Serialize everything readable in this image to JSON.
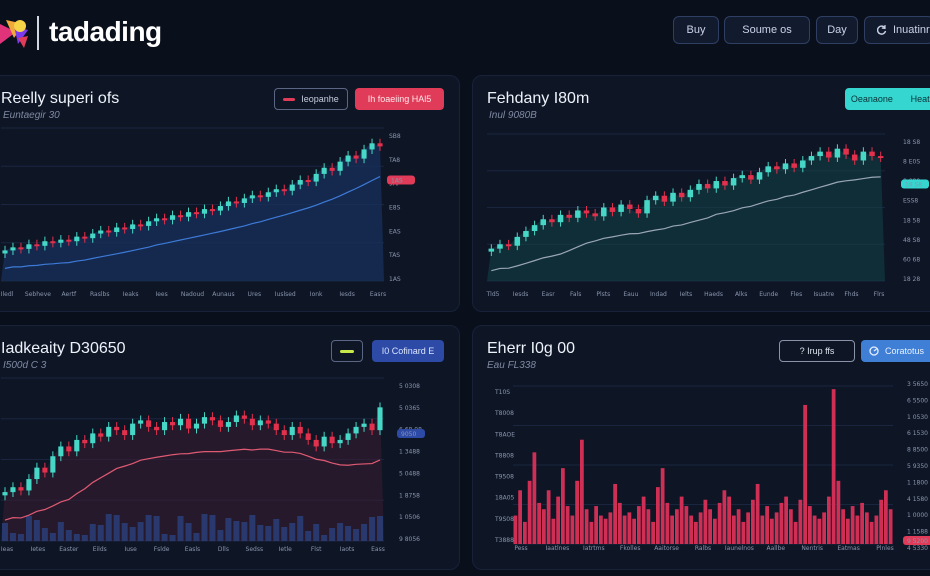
{
  "app": {
    "brand": "tadading"
  },
  "topbar": {
    "buttons": [
      {
        "label": "Buy"
      },
      {
        "label": "Soume os"
      },
      {
        "label": "Day"
      },
      {
        "label": "Inuatinr"
      }
    ]
  },
  "colors": {
    "accent_red": "#e03b58",
    "accent_teal": "#34d6cf",
    "accent_blue": "#2c5fd0",
    "panel_bg": "#0e1626"
  },
  "panels": [
    {
      "title": "Reelly superi ofs",
      "subtitle": "Euntaegir 30",
      "pill_primary": "Ieopanhe",
      "pill_secondary": "Ih foaeiing HAl5",
      "xlabels": [
        "Iledl",
        "Sebheve",
        "Aertf",
        "Raslbs",
        "Ieaks",
        "Iees",
        "Nadoud",
        "Aunaus",
        "Ures",
        "Iuslsed",
        "Ionk",
        "Iesds",
        "Easrs"
      ],
      "ylabels": [
        "SB8",
        "TA8",
        "9AP",
        "E8S",
        "EAS",
        "TAS",
        "1AS"
      ],
      "y_badge": "1AS"
    },
    {
      "title": "Fehdany I80m",
      "subtitle": "Inul 9080B",
      "pill_primary": "Oeanaone",
      "pill_secondary": "Heatry",
      "xlabels": [
        "Tld5",
        "Iesds",
        "Easr",
        "Fals",
        "Plsts",
        "Eauu",
        "Indad",
        "Ielts",
        "Haeds",
        "Alks",
        "Eunde",
        "Fles",
        "Isuatre",
        "Fhds",
        "Flrs"
      ],
      "ylabels": [
        "18 S8",
        "8 E0S",
        "8 080",
        "ESS8",
        "18 58",
        "48 S8",
        "60 68",
        "18 28"
      ],
      "y_badge": "18 S8"
    },
    {
      "title": "Iadkeaity D30650",
      "subtitle": "I500d C 3",
      "pill_primary": "—",
      "pill_secondary": "I0 Cofinard E",
      "xlabels": [
        "Ieas",
        "Ietes",
        "Easter",
        "Eilds",
        "Iuse",
        "Fslde",
        "Easls",
        "Dlls",
        "Sedss",
        "Ietle",
        "Flst",
        "Iaots",
        "Eass"
      ],
      "ylabels": [
        "5 0308",
        "5 0365",
        "6 68 08",
        "1 3488",
        "5 0488",
        "1 8758",
        "1 0506",
        "9 8056"
      ],
      "y_badge": "9050"
    },
    {
      "title": "Eherr I0g 00",
      "subtitle": "Eau FL338",
      "pill_primary": "? Irup ffs",
      "pill_secondary": "Coratotus",
      "xlabels": [
        "Pess",
        "Iaatlnes",
        "Iatrtms",
        "Fkolles",
        "Aaitorse",
        "Ralbs",
        "Iaunelnos",
        "Aallbe",
        "Nentris",
        "Eatmas",
        "Plnles"
      ],
      "ylabels": [
        "T10S",
        "T8008",
        "T8AOE",
        "T8808",
        "T9508",
        "18A05",
        "T9S08",
        "T3888"
      ],
      "right_ylabels": [
        "3 5650",
        "6 5500",
        "1 0530",
        "6 1530",
        "8 8500",
        "5 9350",
        "1 1800",
        "4 1580",
        "1 0000",
        "1 1588",
        "4 5330"
      ],
      "y_badge": "9 5200"
    }
  ],
  "chart_data": [
    {
      "type": "candlestick",
      "title": "Reelly superi ofs",
      "trend": "up",
      "series": [
        {
          "values": [
            20,
            22,
            21,
            24,
            23,
            26,
            25,
            27,
            26,
            29,
            28,
            31,
            33,
            32,
            35,
            34,
            37,
            36,
            39,
            41,
            40,
            43,
            42,
            45,
            44,
            47,
            46,
            49,
            52,
            51,
            54,
            56,
            55,
            58,
            60,
            59,
            63,
            66,
            65,
            70,
            74,
            72,
            78,
            82,
            80,
            86,
            90,
            88
          ]
        }
      ],
      "ylim": [
        0,
        100
      ]
    },
    {
      "type": "candlestick",
      "title": "Fehdany I80m",
      "trend": "up",
      "series": [
        {
          "values": [
            22,
            25,
            24,
            30,
            34,
            38,
            42,
            40,
            45,
            43,
            48,
            46,
            44,
            50,
            47,
            52,
            49,
            46,
            55,
            58,
            54,
            60,
            57,
            62,
            66,
            63,
            68,
            65,
            70,
            72,
            69,
            74,
            78,
            76,
            80,
            77,
            82,
            85,
            88,
            84,
            90,
            86,
            82,
            88,
            85,
            84
          ]
        }
      ],
      "ylim": [
        0,
        100
      ]
    },
    {
      "type": "candlestick",
      "title": "Iadkeaity D30650",
      "trend": "mixed",
      "series": [
        {
          "values": [
            30,
            33,
            31,
            38,
            45,
            42,
            52,
            58,
            55,
            62,
            60,
            66,
            64,
            70,
            68,
            65,
            72,
            74,
            70,
            68,
            73,
            71,
            75,
            69,
            72,
            76,
            74,
            70,
            73,
            77,
            75,
            71,
            74,
            72,
            68,
            65,
            70,
            66,
            62,
            58,
            64,
            60,
            62,
            66,
            70,
            72,
            68,
            82
          ]
        }
      ],
      "ylim": [
        0,
        100
      ]
    },
    {
      "type": "bar",
      "title": "Eherr I0g 00",
      "series": [
        {
          "values": [
            18,
            34,
            14,
            40,
            58,
            26,
            22,
            34,
            16,
            30,
            48,
            24,
            18,
            40,
            66,
            22,
            14,
            24,
            18,
            16,
            20,
            38,
            26,
            18,
            20,
            16,
            24,
            30,
            22,
            14,
            36,
            48,
            26,
            18,
            22,
            30,
            24,
            18,
            14,
            20,
            28,
            22,
            16,
            26,
            34,
            30,
            18,
            22,
            14,
            20,
            28,
            38,
            18,
            24,
            16,
            20,
            26,
            30,
            22,
            14,
            28,
            88,
            24,
            18,
            16,
            20,
            30,
            98,
            40,
            22,
            16,
            24,
            18,
            26,
            20,
            14,
            18,
            28,
            34,
            22
          ]
        }
      ],
      "ylim": [
        0,
        100
      ]
    }
  ]
}
